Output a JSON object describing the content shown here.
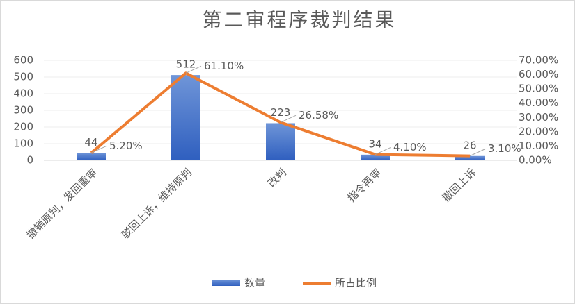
{
  "chart_data": {
    "type": "bar",
    "title": "第二审程序裁判结果",
    "categories": [
      "撤销原判，发回重审",
      "驳回上诉，维持原判",
      "改判",
      "指令再审",
      "撤回上诉"
    ],
    "series": [
      {
        "name": "数量",
        "type": "bar",
        "color": "#4472c4",
        "values": [
          44,
          512,
          223,
          34,
          26
        ]
      },
      {
        "name": "所占比例",
        "type": "line",
        "axis": "y2",
        "color": "#ed7d31",
        "values": [
          5.2,
          61.1,
          26.58,
          4.1,
          3.1
        ],
        "value_labels": [
          "5.20%",
          "61.10%",
          "26.58%",
          "4.10%",
          "3.10%"
        ]
      }
    ],
    "ylim": [
      0,
      600
    ],
    "yticks": [
      0,
      100,
      200,
      300,
      400,
      500,
      600
    ],
    "y2lim": [
      0,
      70
    ],
    "y2ticks": [
      {
        "value": 0,
        "label": "0.00%"
      },
      {
        "value": 10,
        "label": "10.00%"
      },
      {
        "value": 20,
        "label": "20.00%"
      },
      {
        "value": 30,
        "label": "30.00%"
      },
      {
        "value": 40,
        "label": "40.00%"
      },
      {
        "value": 50,
        "label": "50.00%"
      },
      {
        "value": 60,
        "label": "60.00%"
      },
      {
        "value": 70,
        "label": "70.00%"
      }
    ],
    "grid": true,
    "legend": "bottom"
  }
}
